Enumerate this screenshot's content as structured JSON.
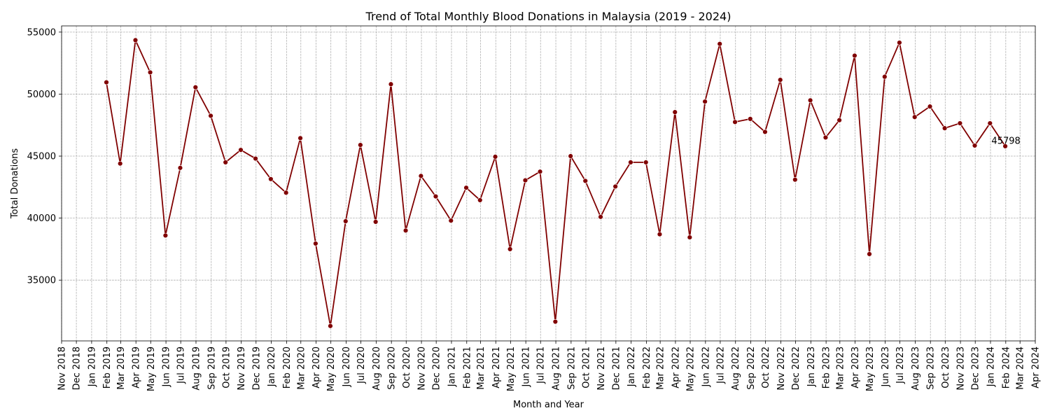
{
  "chart_data": {
    "type": "line",
    "title": "Trend of Total Monthly Blood Donations in Malaysia (2019 - 2024)",
    "xlabel": "Month and Year",
    "ylabel": "Total Donations",
    "x_tick_labels": [
      "Nov 2018",
      "Dec 2018",
      "Jan 2019",
      "Feb 2019",
      "Mar 2019",
      "Apr 2019",
      "May 2019",
      "Jun 2019",
      "Jul 2019",
      "Aug 2019",
      "Sep 2019",
      "Oct 2019",
      "Nov 2019",
      "Dec 2019",
      "Jan 2020",
      "Feb 2020",
      "Mar 2020",
      "Apr 2020",
      "May 2020",
      "Jun 2020",
      "Jul 2020",
      "Aug 2020",
      "Sep 2020",
      "Oct 2020",
      "Nov 2020",
      "Dec 2020",
      "Jan 2021",
      "Feb 2021",
      "Mar 2021",
      "Apr 2021",
      "May 2021",
      "Jun 2021",
      "Jul 2021",
      "Aug 2021",
      "Sep 2021",
      "Oct 2021",
      "Nov 2021",
      "Dec 2021",
      "Jan 2022",
      "Feb 2022",
      "Mar 2022",
      "Apr 2022",
      "May 2022",
      "Jun 2022",
      "Jul 2022",
      "Aug 2022",
      "Sep 2022",
      "Oct 2022",
      "Nov 2022",
      "Dec 2022",
      "Jan 2023",
      "Feb 2023",
      "Mar 2023",
      "Apr 2023",
      "May 2023",
      "Jun 2023",
      "Jul 2023",
      "Aug 2023",
      "Sep 2023",
      "Oct 2023",
      "Nov 2023",
      "Dec 2023",
      "Jan 2024",
      "Feb 2024",
      "Mar 2024",
      "Apr 2024"
    ],
    "y_ticks": [
      35000,
      40000,
      45000,
      50000,
      55000
    ],
    "ylim": [
      30100,
      55500
    ],
    "xlim": [
      "2018-11-01",
      "2024-04-01"
    ],
    "grid": true,
    "series": [
      {
        "color": "#800000",
        "marker": "circle",
        "points": [
          {
            "x": "2019-01-31",
            "y": 50950
          },
          {
            "x": "2019-02-28",
            "y": 44400
          },
          {
            "x": "2019-03-31",
            "y": 54350
          },
          {
            "x": "2019-04-30",
            "y": 51750
          },
          {
            "x": "2019-05-31",
            "y": 38600
          },
          {
            "x": "2019-06-30",
            "y": 44050
          },
          {
            "x": "2019-07-31",
            "y": 50550
          },
          {
            "x": "2019-08-31",
            "y": 48250
          },
          {
            "x": "2019-09-30",
            "y": 44500
          },
          {
            "x": "2019-10-31",
            "y": 45500
          },
          {
            "x": "2019-11-30",
            "y": 44800
          },
          {
            "x": "2019-12-31",
            "y": 43150
          },
          {
            "x": "2020-01-31",
            "y": 42050
          },
          {
            "x": "2020-02-29",
            "y": 46450
          },
          {
            "x": "2020-03-31",
            "y": 37950
          },
          {
            "x": "2020-04-30",
            "y": 31300
          },
          {
            "x": "2020-05-31",
            "y": 39750
          },
          {
            "x": "2020-06-30",
            "y": 45900
          },
          {
            "x": "2020-07-31",
            "y": 39700
          },
          {
            "x": "2020-08-31",
            "y": 50800
          },
          {
            "x": "2020-09-30",
            "y": 39000
          },
          {
            "x": "2020-10-31",
            "y": 43400
          },
          {
            "x": "2020-11-30",
            "y": 41750
          },
          {
            "x": "2020-12-31",
            "y": 39800
          },
          {
            "x": "2021-01-31",
            "y": 42450
          },
          {
            "x": "2021-02-28",
            "y": 41450
          },
          {
            "x": "2021-03-31",
            "y": 44950
          },
          {
            "x": "2021-04-30",
            "y": 37500
          },
          {
            "x": "2021-05-31",
            "y": 43050
          },
          {
            "x": "2021-06-30",
            "y": 43750
          },
          {
            "x": "2021-07-31",
            "y": 31650
          },
          {
            "x": "2021-08-31",
            "y": 45000
          },
          {
            "x": "2021-09-30",
            "y": 43000
          },
          {
            "x": "2021-10-31",
            "y": 40100
          },
          {
            "x": "2021-11-30",
            "y": 42550
          },
          {
            "x": "2021-12-31",
            "y": 44500
          },
          {
            "x": "2022-01-31",
            "y": 44500
          },
          {
            "x": "2022-02-28",
            "y": 38700
          },
          {
            "x": "2022-03-31",
            "y": 48550
          },
          {
            "x": "2022-04-30",
            "y": 38450
          },
          {
            "x": "2022-05-31",
            "y": 49400
          },
          {
            "x": "2022-06-30",
            "y": 54050
          },
          {
            "x": "2022-07-31",
            "y": 47750
          },
          {
            "x": "2022-08-31",
            "y": 48000
          },
          {
            "x": "2022-09-30",
            "y": 46950
          },
          {
            "x": "2022-10-31",
            "y": 51150
          },
          {
            "x": "2022-11-30",
            "y": 43100
          },
          {
            "x": "2022-12-31",
            "y": 49500
          },
          {
            "x": "2023-01-31",
            "y": 46500
          },
          {
            "x": "2023-02-28",
            "y": 47900
          },
          {
            "x": "2023-03-31",
            "y": 53100
          },
          {
            "x": "2023-04-30",
            "y": 37100
          },
          {
            "x": "2023-05-31",
            "y": 51400
          },
          {
            "x": "2023-06-30",
            "y": 54150
          },
          {
            "x": "2023-07-31",
            "y": 48150
          },
          {
            "x": "2023-08-31",
            "y": 49000
          },
          {
            "x": "2023-09-30",
            "y": 47250
          },
          {
            "x": "2023-10-31",
            "y": 47650
          },
          {
            "x": "2023-11-30",
            "y": 45850
          },
          {
            "x": "2023-12-31",
            "y": 47650
          },
          {
            "x": "2024-01-31",
            "y": 45798
          }
        ]
      }
    ],
    "annotation": {
      "text": "45798",
      "x": "2024-01-31",
      "y": 45798
    }
  }
}
